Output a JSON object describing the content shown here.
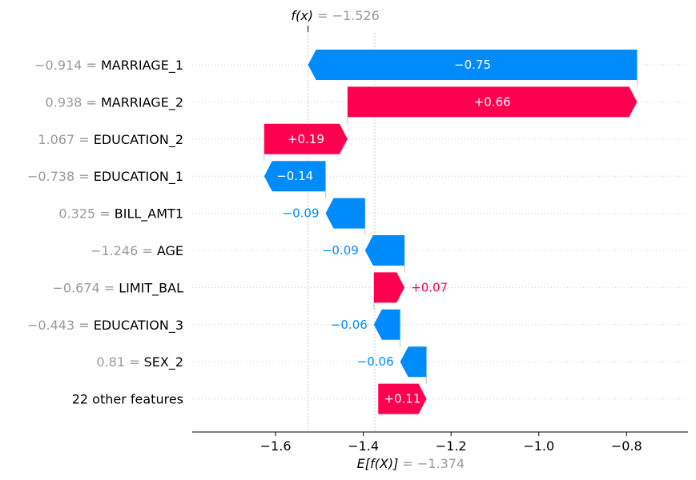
{
  "chart_data": {
    "type": "waterfall",
    "base_value": -1.374,
    "base_value_label": "E[f(X)]",
    "base_value_text": "= −1.374",
    "output_value": -1.526,
    "output_value_label": "f(x)",
    "output_value_text": "= −1.526",
    "xlim": [
      -1.79,
      -0.66
    ],
    "xticks": [
      -1.6,
      -1.4,
      -1.2,
      -1.0,
      -0.8
    ],
    "xtick_labels": [
      "−1.6",
      "−1.4",
      "−1.2",
      "−1.0",
      "−0.8"
    ],
    "positive_color": "#ff0051",
    "negative_color": "#008bfb",
    "features": [
      {
        "value_label": "−0.914 =",
        "name": "MARRIAGE_1",
        "start": -0.776,
        "end": -1.526,
        "contribution": -0.75,
        "label": "−0.75"
      },
      {
        "value_label": "0.938 =",
        "name": "MARRIAGE_2",
        "start": -1.436,
        "end": -0.776,
        "contribution": 0.66,
        "label": "+0.66"
      },
      {
        "value_label": "1.067 =",
        "name": "EDUCATION_2",
        "start": -1.626,
        "end": -1.436,
        "contribution": 0.19,
        "label": "+0.19"
      },
      {
        "value_label": "−0.738 =",
        "name": "EDUCATION_1",
        "start": -1.486,
        "end": -1.626,
        "contribution": -0.14,
        "label": "−0.14"
      },
      {
        "value_label": "0.325 =",
        "name": "BILL_AMT1",
        "start": -1.396,
        "end": -1.486,
        "contribution": -0.09,
        "label": "−0.09"
      },
      {
        "value_label": "−1.246 =",
        "name": "AGE",
        "start": -1.306,
        "end": -1.396,
        "contribution": -0.09,
        "label": "−0.09"
      },
      {
        "value_label": "−0.674 =",
        "name": "LIMIT_BAL",
        "start": -1.376,
        "end": -1.306,
        "contribution": 0.07,
        "label": "+0.07"
      },
      {
        "value_label": "−0.443 =",
        "name": "EDUCATION_3",
        "start": -1.316,
        "end": -1.376,
        "contribution": -0.06,
        "label": "−0.06"
      },
      {
        "value_label": "0.81 =",
        "name": "SEX_2",
        "start": -1.256,
        "end": -1.316,
        "contribution": -0.06,
        "label": "−0.06"
      },
      {
        "value_label": "",
        "name": "22 other features",
        "start": -1.366,
        "end": -1.256,
        "contribution": 0.11,
        "label": "+0.11"
      }
    ]
  }
}
